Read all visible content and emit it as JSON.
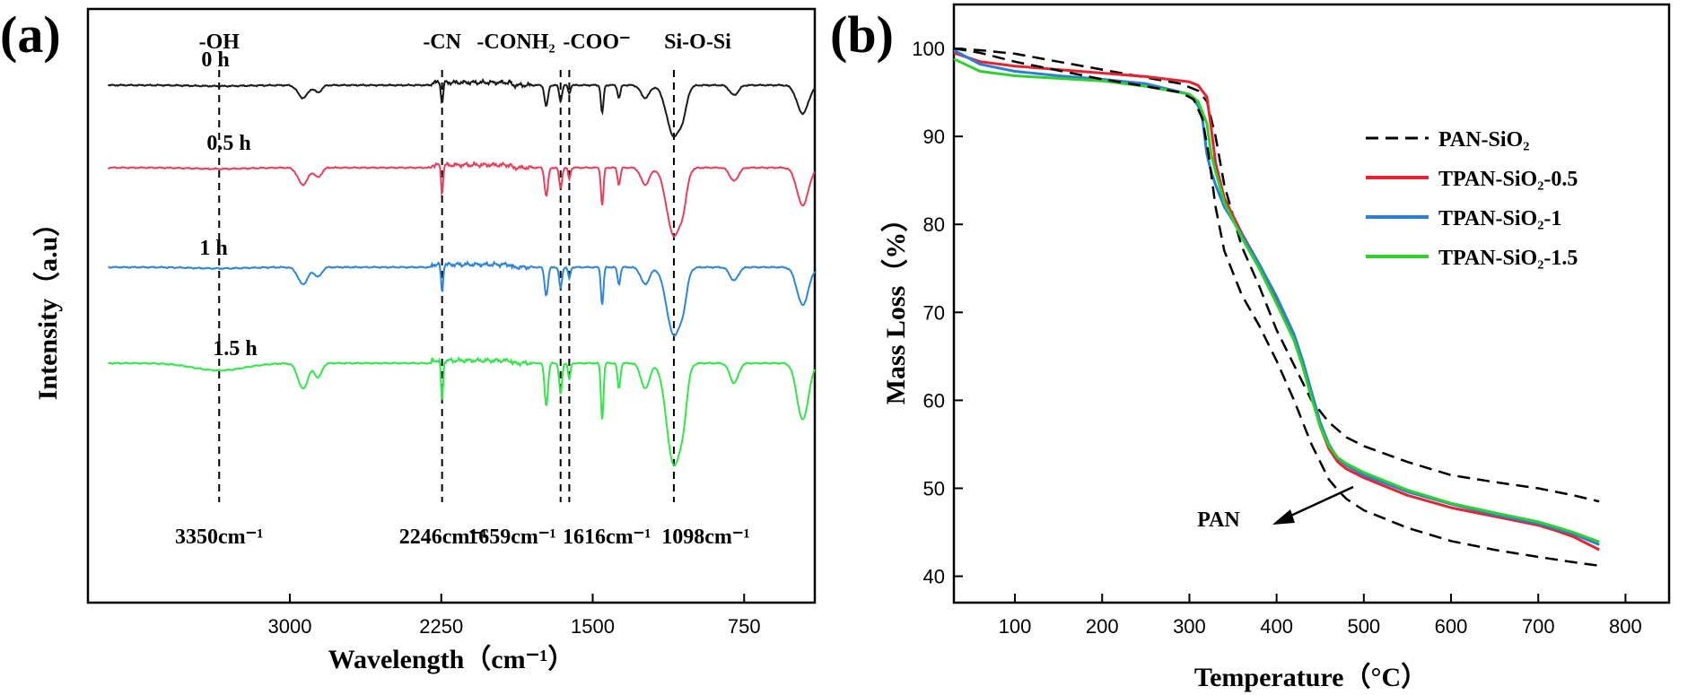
{
  "chart_data": [
    {
      "type": "line",
      "panel": "(a)",
      "xlabel": "Wavelength（cm⁻¹）",
      "ylabel": "Intensity（a.u）",
      "xlim": [
        4000,
        400
      ],
      "x_reversed": true,
      "x_ticks": [
        "3000",
        "2250",
        "1500",
        "750"
      ],
      "x_tick_values": [
        3000,
        2250,
        1500,
        750
      ],
      "group_labels": [
        "-OH",
        "-CN",
        "-CONH₂",
        "-COO⁻",
        "Si-O-Si"
      ],
      "peak_labels": [
        "3350cm⁻¹",
        "2246cm⁻¹",
        "1659cm⁻¹",
        "1616cm⁻¹",
        "1098cm⁻¹"
      ],
      "reference_lines": [
        3350,
        2246,
        1659,
        1616,
        1098
      ],
      "series": [
        {
          "name": "0 h",
          "color": "#1a1a1a"
        },
        {
          "name": "0.5 h",
          "color": "#e8405a"
        },
        {
          "name": "1 h",
          "color": "#2f86d8"
        },
        {
          "name": "1.5 h",
          "color": "#33e64a"
        }
      ],
      "y_ticks_shown": false
    },
    {
      "type": "line",
      "panel": "(b)",
      "xlabel": "Temperature（°C）",
      "ylabel": "Mass Loss（%）",
      "xlim": [
        30,
        850
      ],
      "ylim": [
        37,
        105
      ],
      "x_ticks": [
        "100",
        "200",
        "300",
        "400",
        "500",
        "600",
        "700",
        "800"
      ],
      "x_tick_values": [
        100,
        200,
        300,
        400,
        500,
        600,
        700,
        800
      ],
      "y_ticks": [
        "40",
        "50",
        "60",
        "70",
        "80",
        "90",
        "100"
      ],
      "y_tick_values": [
        40,
        50,
        60,
        70,
        80,
        90,
        100
      ],
      "annotation": "PAN",
      "legend_position": "right",
      "series": [
        {
          "name": "PAN-SiO₂",
          "color": "#000000",
          "dashed": true,
          "x": [
            30,
            60,
            100,
            150,
            200,
            250,
            290,
            310,
            320,
            330,
            340,
            360,
            380,
            400,
            420,
            440,
            460,
            480,
            500,
            550,
            600,
            650,
            700,
            720,
            740,
            770
          ],
          "y": [
            100,
            99.8,
            99.4,
            98.5,
            97.6,
            96.7,
            96.0,
            95.2,
            94.0,
            90.0,
            84.5,
            77.5,
            73.0,
            68.0,
            64.0,
            60.0,
            57.5,
            55.8,
            54.8,
            53.0,
            51.5,
            50.7,
            50.0,
            49.6,
            49.2,
            48.5
          ]
        },
        {
          "name": "TPAN-SiO₂-0.5",
          "color": "#e8222e",
          "dashed": false,
          "x": [
            30,
            60,
            100,
            150,
            200,
            250,
            300,
            310,
            320,
            325,
            330,
            340,
            360,
            380,
            400,
            420,
            430,
            440,
            450,
            460,
            470,
            480,
            500,
            550,
            600,
            650,
            700,
            720,
            740,
            770
          ],
          "y": [
            99.5,
            98.5,
            98.0,
            97.6,
            97.2,
            96.8,
            96.2,
            95.8,
            94.5,
            91.0,
            87.0,
            83.0,
            79.0,
            75.5,
            71.5,
            67.0,
            64.0,
            60.5,
            57.0,
            54.5,
            53.0,
            52.2,
            51.2,
            49.2,
            47.8,
            46.8,
            45.8,
            45.2,
            44.5,
            43.0
          ]
        },
        {
          "name": "TPAN-SiO₂-1",
          "color": "#2a7fd6",
          "dashed": false,
          "x": [
            30,
            60,
            100,
            150,
            200,
            250,
            300,
            310,
            315,
            320,
            325,
            330,
            340,
            360,
            380,
            400,
            420,
            430,
            440,
            450,
            460,
            470,
            480,
            500,
            550,
            600,
            650,
            700,
            720,
            740,
            770
          ],
          "y": [
            99.8,
            98.2,
            97.4,
            96.9,
            96.5,
            96.0,
            94.8,
            93.5,
            92.0,
            88.0,
            86.0,
            84.5,
            82.0,
            78.8,
            75.5,
            71.8,
            67.5,
            64.5,
            61.0,
            57.5,
            55.0,
            53.4,
            52.6,
            51.5,
            49.6,
            48.2,
            47.0,
            46.0,
            45.4,
            44.8,
            43.6
          ]
        },
        {
          "name": "TPAN-SiO₂-1.5",
          "color": "#2fd12f",
          "dashed": false,
          "x": [
            30,
            60,
            100,
            150,
            200,
            250,
            300,
            310,
            320,
            325,
            330,
            340,
            360,
            380,
            400,
            420,
            430,
            440,
            450,
            460,
            470,
            480,
            500,
            550,
            600,
            650,
            700,
            720,
            740,
            770
          ],
          "y": [
            98.8,
            97.4,
            96.9,
            96.6,
            96.3,
            95.7,
            94.8,
            94.0,
            91.5,
            88.0,
            86.0,
            82.5,
            78.5,
            75.0,
            71.0,
            66.8,
            63.8,
            60.3,
            57.0,
            54.8,
            53.5,
            52.8,
            51.8,
            49.8,
            48.3,
            47.2,
            46.2,
            45.6,
            45.0,
            43.9
          ]
        },
        {
          "name": "PAN",
          "color": "#000000",
          "dashed": true,
          "in_legend": false,
          "x": [
            30,
            60,
            100,
            150,
            200,
            250,
            290,
            305,
            315,
            322,
            330,
            340,
            360,
            380,
            400,
            420,
            440,
            460,
            470,
            480,
            500,
            550,
            600,
            650,
            700,
            740,
            770
          ],
          "y": [
            100,
            99.5,
            98.5,
            97.5,
            96.5,
            95.7,
            95.0,
            94.2,
            92.0,
            88.0,
            82.0,
            77.0,
            72.0,
            68.5,
            64.5,
            60.0,
            55.0,
            51.0,
            49.8,
            48.8,
            47.5,
            45.5,
            44.0,
            43.0,
            42.2,
            41.6,
            41.2
          ]
        }
      ]
    }
  ]
}
